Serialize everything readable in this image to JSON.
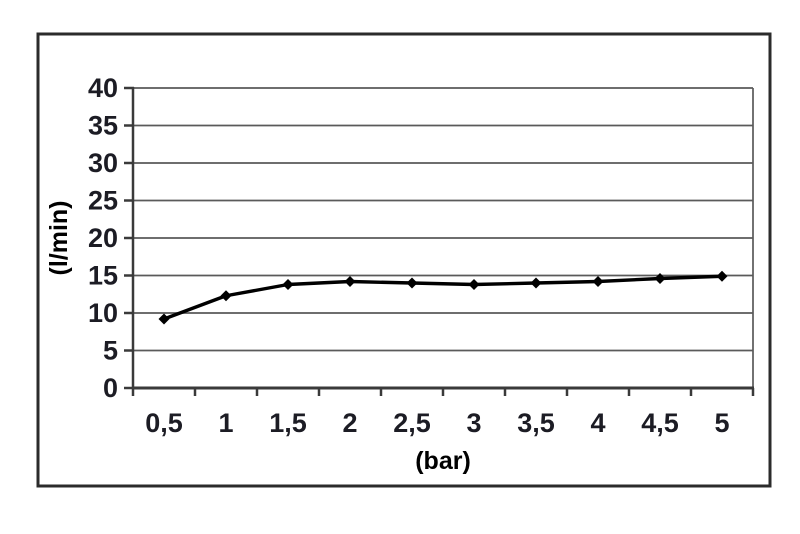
{
  "figure": {
    "background": "#ffffff",
    "border_color": "#2b2b2b"
  },
  "chart_data": {
    "type": "line",
    "title": "",
    "xlabel": "(bar)",
    "ylabel": "(l/min)",
    "categories": [
      "0,5",
      "1",
      "1,5",
      "2",
      "2,5",
      "3",
      "3,5",
      "4",
      "4,5",
      "5"
    ],
    "values": [
      9.2,
      12.3,
      13.8,
      14.2,
      14.0,
      13.8,
      14.0,
      14.2,
      14.6,
      14.9
    ],
    "ylim": [
      0,
      40
    ],
    "yticks": [
      0,
      5,
      10,
      15,
      20,
      25,
      30,
      35,
      40
    ],
    "grid": true,
    "legend": "none",
    "marker": "diamond",
    "colors": {
      "line": "#000000",
      "marker": "#000000",
      "grid": "#5a5a5a",
      "axis": "#3a3a3a",
      "text": "#1c1c24"
    }
  }
}
